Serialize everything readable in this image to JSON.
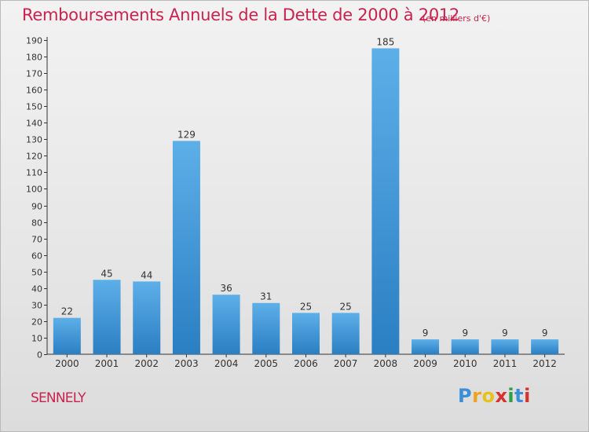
{
  "title": "Remboursements Annuels de la Dette de 2000 à 2012",
  "unit_note": "(en milliers d'€)",
  "commune": "SENNELY",
  "brand": {
    "name": "Proxiti",
    "letters": [
      "P",
      "r",
      "o",
      "x",
      "i",
      "t",
      "i"
    ],
    "letter_colors": [
      "#3a8fd6",
      "#f2a11c",
      "#e8c21a",
      "#d8322f",
      "#2f9e44",
      "#3a8fd6",
      "#d8322f"
    ]
  },
  "colors": {
    "title": "#c8234f",
    "bar_light": "#5dafe8",
    "bar_dark": "#2a7fc3",
    "axis": "#333333",
    "grid": "#cccccc"
  },
  "chart_data": {
    "type": "bar",
    "categories": [
      "2000",
      "2001",
      "2002",
      "2003",
      "2004",
      "2005",
      "2006",
      "2007",
      "2008",
      "2009",
      "2010",
      "2011",
      "2012"
    ],
    "values": [
      22,
      45,
      44,
      129,
      36,
      31,
      25,
      25,
      185,
      9,
      9,
      9,
      9
    ],
    "data_labels": [
      "22",
      "45",
      "44",
      "129",
      "36",
      "31",
      "25",
      "25",
      "185",
      "9",
      "9",
      "9",
      "9"
    ],
    "title": "Remboursements Annuels de la Dette de 2000 à 2012",
    "xlabel": "",
    "ylabel": "",
    "ylim": [
      0,
      190
    ],
    "yticks": [
      0,
      10,
      20,
      30,
      40,
      50,
      60,
      70,
      80,
      90,
      100,
      110,
      120,
      130,
      140,
      150,
      160,
      170,
      180,
      190
    ],
    "grid": false,
    "legend": "none"
  }
}
